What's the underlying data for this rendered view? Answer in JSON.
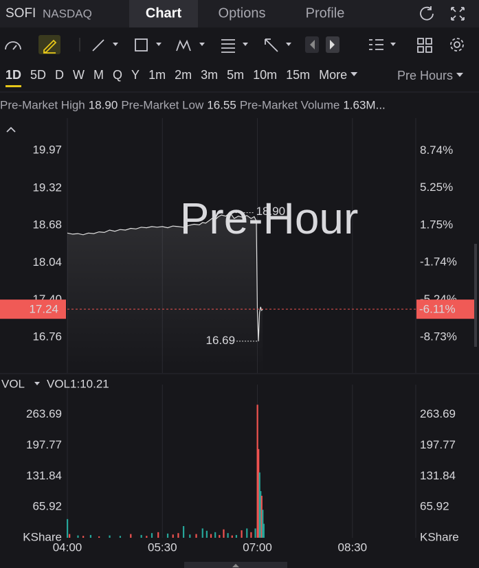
{
  "header": {
    "symbol": "SOFI",
    "exchange": "NASDAQ",
    "tabs": [
      "Chart",
      "Options",
      "Profile"
    ]
  },
  "timeframes": [
    "1D",
    "5D",
    "D",
    "W",
    "M",
    "Q",
    "Y",
    "1m",
    "2m",
    "3m",
    "5m",
    "10m",
    "15m",
    "More"
  ],
  "session": "Pre Hours",
  "summary": [
    {
      "label": "Pre-Market High",
      "value": "18.90"
    },
    {
      "label": "Pre-Market Low",
      "value": "16.55"
    },
    {
      "label": "Pre-Market Volume",
      "value": "1.63M..."
    }
  ],
  "chart_data": [
    {
      "type": "line",
      "watermark": "Pre-Hour",
      "color": "#e0e0e0",
      "grid": "x",
      "x": [
        240,
        245,
        250,
        255,
        260,
        265,
        270,
        275,
        280,
        285,
        290,
        295,
        300,
        305,
        310,
        315,
        320,
        325,
        330,
        335,
        340,
        345,
        350,
        355,
        360,
        365,
        368,
        371,
        374,
        377,
        380,
        383,
        386,
        390,
        394,
        398,
        402,
        406,
        410,
        414,
        417,
        419,
        420,
        421,
        422,
        423,
        424,
        425
      ],
      "values": [
        18.55,
        18.53,
        18.54,
        18.52,
        18.55,
        18.54,
        18.57,
        18.56,
        18.6,
        18.58,
        18.61,
        18.6,
        18.63,
        18.62,
        18.65,
        18.64,
        18.66,
        18.65,
        18.66,
        18.64,
        18.67,
        18.66,
        18.65,
        18.68,
        18.7,
        18.69,
        18.73,
        18.72,
        18.76,
        18.8,
        18.78,
        18.83,
        18.86,
        18.84,
        18.9,
        18.8,
        18.84,
        18.82,
        18.85,
        18.8,
        18.83,
        18.76,
        17.2,
        16.69,
        17.18,
        17.28,
        17.22,
        17.24
      ],
      "xlim": [
        240,
        570
      ],
      "xticks": [
        {
          "value": 240,
          "label": "04:00"
        },
        {
          "value": 330,
          "label": "05:30"
        },
        {
          "value": 420,
          "label": "07:00"
        },
        {
          "value": 510,
          "label": "08:30"
        }
      ],
      "ylim": [
        16.144,
        20.525
      ],
      "yticks": [
        19.97,
        19.32,
        18.68,
        18.04,
        {
          "value": 17.4,
          "label": "17.40"
        },
        16.76
      ],
      "y2lim": [
        -12.08,
        11.78
      ],
      "y2ticks": [
        {
          "value": 8.74,
          "label": "8.74%"
        },
        {
          "value": 5.25,
          "label": "5.25%"
        },
        {
          "value": 1.75,
          "label": "1.75%"
        },
        {
          "value": -1.74,
          "label": "-1.74%"
        },
        {
          "value": -5.24,
          "label": "-5.24%"
        },
        {
          "value": -8.73,
          "label": "-8.73%"
        }
      ],
      "high": {
        "x": 394,
        "value": 18.9,
        "label": "18.90"
      },
      "low": {
        "x": 421,
        "value": 16.69
      },
      "last_price": 17.24,
      "last_change": {
        "value": -6.11,
        "label": "-6.11%"
      }
    },
    {
      "type": "bar",
      "title": "VOL",
      "indicator": "VOL1:10.21",
      "x": [
        240,
        242,
        250,
        255,
        262,
        270,
        280,
        290,
        300,
        310,
        315,
        320,
        326,
        335,
        340,
        345,
        350,
        356,
        362,
        368,
        372,
        376,
        380,
        384,
        388,
        392,
        396,
        400,
        405,
        410,
        414,
        418,
        420,
        421,
        422,
        423,
        424,
        425,
        426
      ],
      "values": [
        40,
        8,
        5,
        4,
        6,
        3,
        5,
        4,
        8,
        6,
        4,
        10,
        12,
        9,
        7,
        10,
        25,
        7,
        8,
        20,
        15,
        8,
        12,
        6,
        18,
        10,
        5,
        6,
        16,
        20,
        12,
        20,
        285,
        190,
        140,
        100,
        90,
        60,
        30
      ],
      "colors": [
        "#26a69a",
        "#ef5350",
        "#26a69a",
        "#ef5350",
        "#26a69a",
        "#ef5350",
        "#26a69a",
        "#26a69a",
        "#ef5350",
        "#26a69a",
        "#ef5350",
        "#26a69a",
        "#ef5350",
        "#26a69a",
        "#ef5350",
        "#ef5350",
        "#26a69a",
        "#26a69a",
        "#ef5350",
        "#26a69a",
        "#26a69a",
        "#ef5350",
        "#26a69a",
        "#ef5350",
        "#ef5350",
        "#26a69a",
        "#ef5350",
        "#26a69a",
        "#ef5350",
        "#26a69a",
        "#ef5350",
        "#26a69a",
        "#ef5350",
        "#ef5350",
        "#26a69a",
        "#26a69a",
        "#ef5350",
        "#26a69a",
        "#26a69a"
      ],
      "xlim": [
        240,
        570
      ],
      "ylim": [
        0,
        306
      ],
      "yticks": [
        263.69,
        197.77,
        131.84,
        65.92,
        {
          "value": 0,
          "label": "KShare"
        }
      ]
    }
  ]
}
